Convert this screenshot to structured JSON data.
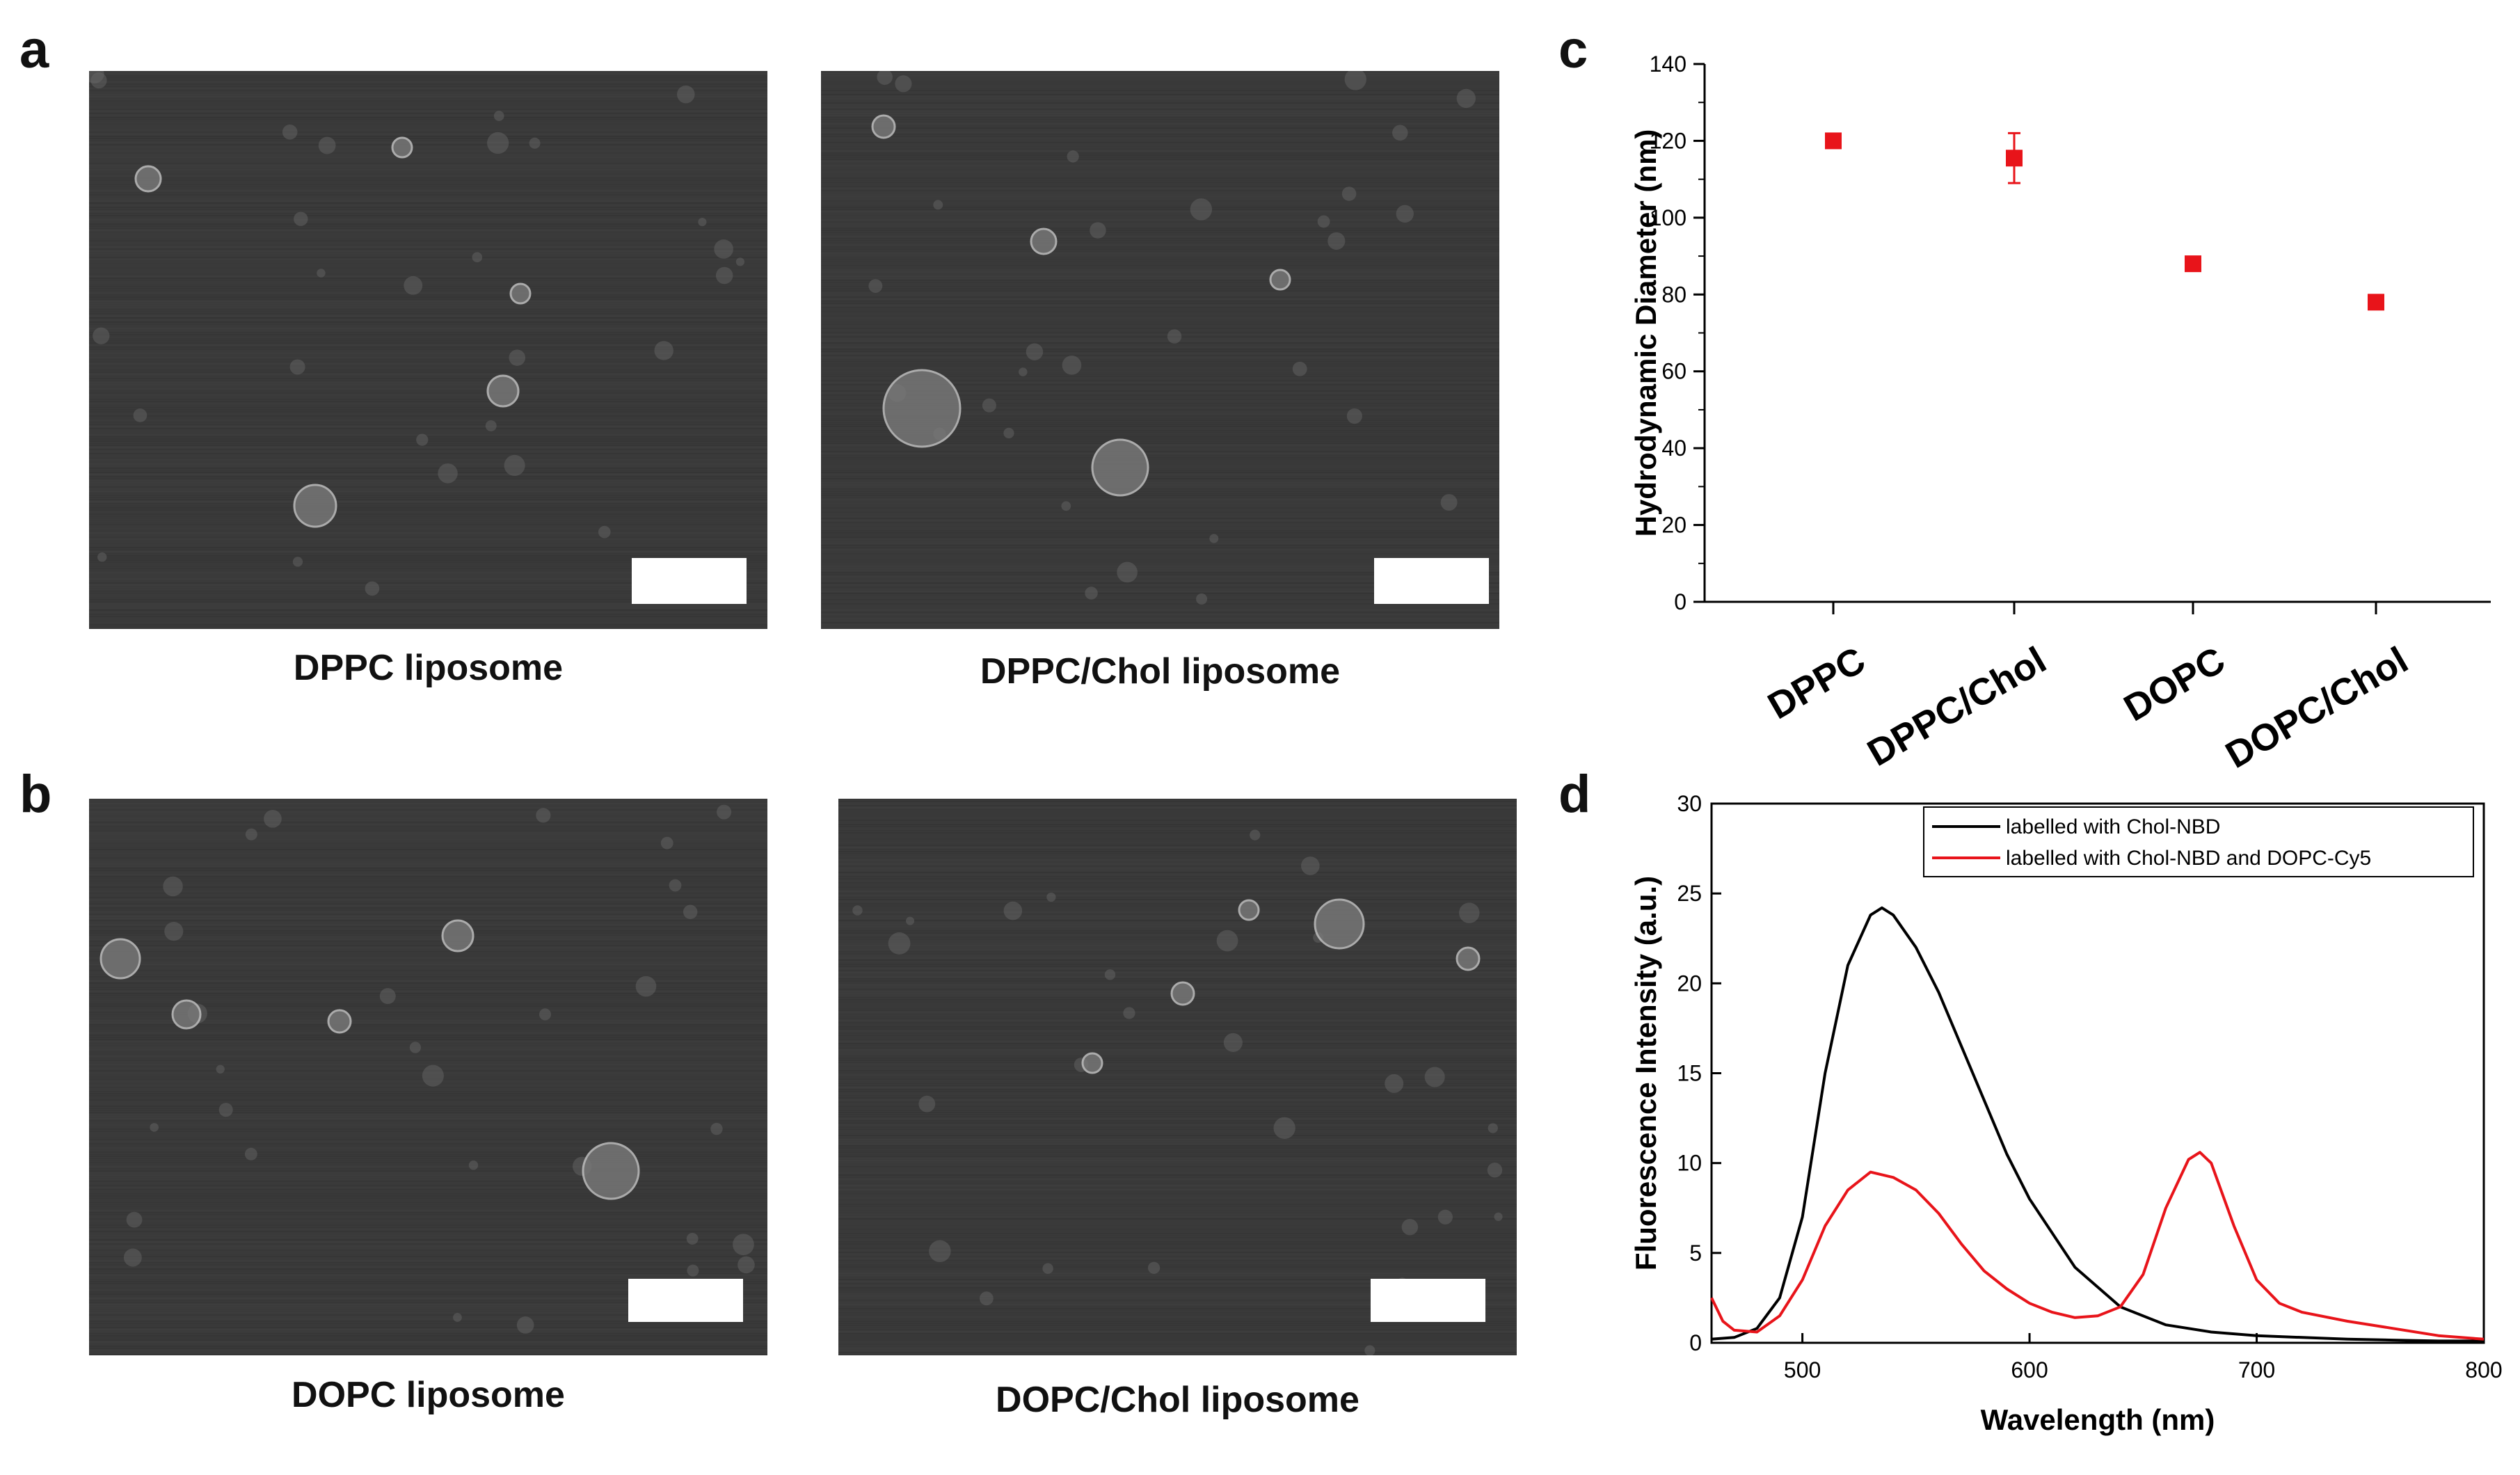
{
  "panels": {
    "a": {
      "letter": "a",
      "left_caption": "DPPC liposome",
      "right_caption": "DPPC/Chol liposome"
    },
    "b": {
      "letter": "b",
      "left_caption": "DOPC liposome",
      "right_caption": "DOPC/Chol liposome"
    },
    "c": {
      "letter": "c"
    },
    "d": {
      "letter": "d"
    }
  },
  "chart_data": [
    {
      "type": "scatter",
      "panel": "c",
      "categories": [
        "DPPC",
        "DPPC/Chol",
        "DOPC",
        "DOPC/Chol"
      ],
      "values": [
        120,
        115.5,
        88,
        78
      ],
      "errors": [
        1.5,
        6.5,
        1.5,
        1
      ],
      "ylabel": "Hydrodynamic Diameter (nm)",
      "ylim": [
        0,
        140
      ],
      "yticks": [
        0,
        20,
        40,
        60,
        80,
        100,
        120,
        140
      ],
      "marker_color": "#e8141a"
    },
    {
      "type": "line",
      "panel": "d",
      "xlabel": "Wavelength  (nm)",
      "ylabel": "Fluorescence Intensity (a.u.)",
      "xlim": [
        460,
        800
      ],
      "ylim": [
        0,
        30
      ],
      "xticks": [
        500,
        600,
        700,
        800
      ],
      "yticks": [
        0,
        5,
        10,
        15,
        20,
        25,
        30
      ],
      "legend_position": "top-right",
      "series": [
        {
          "name": "labelled with Chol-NBD",
          "color": "#000000",
          "x": [
            460,
            470,
            480,
            490,
            500,
            510,
            520,
            530,
            535,
            540,
            550,
            560,
            570,
            580,
            590,
            600,
            620,
            640,
            660,
            680,
            700,
            720,
            740,
            760,
            780,
            800
          ],
          "y": [
            0.2,
            0.3,
            0.8,
            2.5,
            7,
            15,
            21,
            23.8,
            24.2,
            23.8,
            22,
            19.5,
            16.5,
            13.5,
            10.5,
            8,
            4.2,
            2,
            1,
            0.6,
            0.4,
            0.3,
            0.2,
            0.15,
            0.1,
            0.1
          ]
        },
        {
          "name": "labelled with Chol-NBD and DOPC-Cy5",
          "color": "#e8141a",
          "x": [
            460,
            465,
            470,
            480,
            490,
            500,
            510,
            520,
            530,
            540,
            550,
            560,
            570,
            580,
            590,
            600,
            610,
            620,
            630,
            640,
            650,
            660,
            670,
            675,
            680,
            690,
            700,
            710,
            720,
            740,
            760,
            780,
            800
          ],
          "y": [
            2.5,
            1.2,
            0.7,
            0.6,
            1.5,
            3.5,
            6.5,
            8.5,
            9.5,
            9.2,
            8.5,
            7.2,
            5.5,
            4,
            3,
            2.2,
            1.7,
            1.4,
            1.5,
            2,
            3.8,
            7.5,
            10.2,
            10.6,
            10,
            6.5,
            3.5,
            2.2,
            1.7,
            1.2,
            0.8,
            0.4,
            0.2
          ]
        }
      ]
    }
  ]
}
